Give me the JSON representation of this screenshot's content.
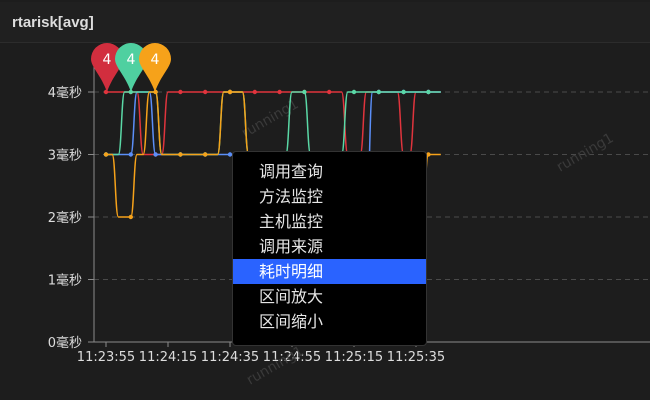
{
  "panel": {
    "title": "rtarisk[avg]",
    "watermark": "running1"
  },
  "context_menu": {
    "items": [
      "调用查询",
      "方法监控",
      "主机监控",
      "调用来源",
      "耗时明细",
      "区间放大",
      "区间缩小"
    ],
    "active_index": 4
  },
  "chart_data": {
    "type": "line",
    "x": [
      "11:23:55",
      "11:23:57",
      "11:23:59",
      "11:24:01",
      "11:24:03",
      "11:24:05",
      "11:24:07",
      "11:24:09",
      "11:24:11",
      "11:24:13",
      "11:24:15",
      "11:24:17",
      "11:24:19",
      "11:24:21",
      "11:24:23",
      "11:24:25",
      "11:24:27",
      "11:24:29",
      "11:24:31",
      "11:24:33",
      "11:24:35",
      "11:24:37",
      "11:24:39",
      "11:24:41",
      "11:24:43",
      "11:24:45",
      "11:24:47",
      "11:24:49",
      "11:24:51",
      "11:24:53",
      "11:24:55",
      "11:24:57",
      "11:24:59",
      "11:25:01",
      "11:25:03",
      "11:25:05",
      "11:25:07",
      "11:25:09",
      "11:25:11",
      "11:25:13",
      "11:25:15",
      "11:25:17",
      "11:25:19",
      "11:25:21",
      "11:25:23",
      "11:25:25",
      "11:25:27",
      "11:25:29",
      "11:25:31",
      "11:25:33",
      "11:25:35",
      "11:25:37",
      "11:25:39",
      "11:25:41",
      "11:25:43"
    ],
    "tick_labels": [
      "11:23:55",
      "11:24:15",
      "11:24:35",
      "11:24:55",
      "11:25:15",
      "11:25:35"
    ],
    "ylim": [
      0,
      4.6
    ],
    "yticks": [
      0,
      1,
      2,
      3,
      4
    ],
    "ytick_labels": [
      "0毫秒",
      "1毫秒",
      "2毫秒",
      "3毫秒",
      "4毫秒"
    ],
    "grid": true,
    "series": [
      {
        "color": "#e0343d",
        "values": [
          4,
          4,
          4,
          4,
          4,
          4,
          3,
          3,
          3,
          3,
          4,
          4,
          4,
          4,
          4,
          4,
          4,
          4,
          4,
          4,
          4,
          4,
          4,
          4,
          4,
          4,
          4,
          4,
          4,
          4,
          4,
          4,
          4,
          4,
          4,
          4,
          4,
          4,
          4,
          3,
          3,
          3,
          4,
          4,
          4,
          4,
          4,
          4,
          3,
          3,
          4,
          4,
          4,
          4,
          4
        ]
      },
      {
        "color": "#5b8ff9",
        "values": [
          3,
          3,
          3,
          3,
          3,
          4,
          4,
          4,
          3,
          3,
          3,
          3,
          3,
          3,
          3,
          3,
          3,
          3,
          3,
          3,
          3,
          3,
          3,
          3,
          3,
          3,
          3,
          3,
          3,
          3,
          3,
          3,
          3,
          3,
          3,
          3,
          3,
          3,
          3,
          3,
          3,
          2,
          2,
          4,
          4,
          4,
          4,
          4,
          4,
          4,
          4,
          4,
          4,
          4,
          4
        ]
      },
      {
        "color": "#5ad8a6",
        "values": [
          3,
          3,
          3,
          4,
          4,
          4,
          4,
          4,
          4,
          3,
          3,
          3,
          3,
          3,
          3,
          3,
          3,
          3,
          3,
          4,
          4,
          4,
          4,
          3,
          3,
          3,
          3,
          3,
          3,
          3,
          4,
          4,
          4,
          3,
          3,
          3,
          3,
          3,
          3,
          4,
          4,
          4,
          4,
          4,
          4,
          4,
          4,
          4,
          4,
          4,
          4,
          4,
          4,
          4,
          4
        ]
      },
      {
        "color": "#f6a21a",
        "values": [
          3,
          3,
          2,
          2,
          2,
          3,
          3,
          4,
          4,
          3,
          3,
          3,
          3,
          3,
          3,
          3,
          3,
          3,
          3,
          4,
          4,
          4,
          4,
          3,
          3,
          3,
          3,
          3,
          3,
          2,
          2,
          2,
          2,
          2,
          2,
          2,
          2,
          2,
          3,
          3,
          3,
          3,
          3,
          3,
          3,
          3,
          3,
          3,
          3,
          3,
          2,
          2,
          3,
          3,
          3
        ]
      }
    ],
    "markers": [
      {
        "label": "4",
        "color": "#d22e3e"
      },
      {
        "label": "4",
        "color": "#4fd0a0"
      },
      {
        "label": "4",
        "color": "#f6a21a"
      }
    ]
  }
}
